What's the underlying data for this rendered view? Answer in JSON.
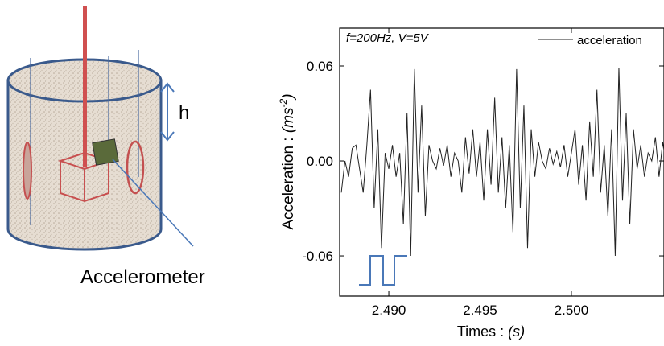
{
  "diagram": {
    "height_label": "h",
    "sensor_label": "Accelerometer"
  },
  "chart_data": {
    "type": "line",
    "annotation": "f=200Hz, V=5V",
    "xlabel_parts": [
      "Times : ",
      "(s)"
    ],
    "ylabel_parts": [
      "Acceleration : ",
      "(ms",
      "-2",
      ")"
    ],
    "x": [
      2.4874,
      2.4876,
      2.4878,
      2.488,
      2.4882,
      2.4884,
      2.4886,
      2.4888,
      2.489,
      2.4892,
      2.4894,
      2.4896,
      2.4898,
      2.49,
      2.4902,
      2.4904,
      2.4906,
      2.4908,
      2.491,
      2.4912,
      2.4914,
      2.4916,
      2.4918,
      2.492,
      2.4922,
      2.4924,
      2.4926,
      2.4928,
      2.493,
      2.4932,
      2.4934,
      2.4936,
      2.4938,
      2.494,
      2.4942,
      2.4944,
      2.4946,
      2.4948,
      2.495,
      2.4952,
      2.4954,
      2.4956,
      2.4958,
      2.496,
      2.4962,
      2.4964,
      2.4966,
      2.4968,
      2.497,
      2.4972,
      2.4974,
      2.4976,
      2.4978,
      2.498,
      2.4982,
      2.4984,
      2.4986,
      2.4988,
      2.499,
      2.4992,
      2.4994,
      2.4996,
      2.4998,
      2.5,
      2.5002,
      2.5004,
      2.5006,
      2.5008,
      2.501,
      2.5012,
      2.5014,
      2.5016,
      2.5018,
      2.502,
      2.5022,
      2.5024,
      2.5026,
      2.5028,
      2.503,
      2.5032,
      2.5034,
      2.5036,
      2.5038,
      2.504,
      2.5042,
      2.5044,
      2.5046,
      2.5048,
      2.505,
      2.5052
    ],
    "series": [
      {
        "name": "acceleration",
        "color": "#222222",
        "values": [
          -0.02,
          0.0,
          -0.01,
          0.008,
          0.01,
          -0.005,
          -0.02,
          0.01,
          0.045,
          -0.03,
          0.02,
          -0.055,
          0.005,
          -0.005,
          0.01,
          -0.01,
          0.005,
          -0.04,
          0.03,
          -0.06,
          0.058,
          -0.02,
          0.035,
          -0.035,
          0.01,
          0.0,
          -0.005,
          0.008,
          -0.003,
          0.01,
          -0.01,
          0.005,
          0.0,
          -0.02,
          0.015,
          -0.008,
          0.02,
          -0.01,
          0.012,
          -0.025,
          0.02,
          -0.015,
          0.04,
          -0.02,
          0.015,
          -0.03,
          0.01,
          -0.045,
          0.058,
          -0.03,
          0.035,
          -0.055,
          0.02,
          -0.01,
          0.012,
          0.0,
          -0.005,
          0.008,
          -0.002,
          0.006,
          -0.004,
          0.01,
          -0.01,
          0.005,
          0.02,
          -0.015,
          0.01,
          -0.025,
          0.025,
          -0.01,
          0.045,
          -0.02,
          0.01,
          -0.035,
          0.02,
          -0.06,
          0.059,
          -0.025,
          0.03,
          -0.04,
          0.02,
          -0.005,
          0.01,
          -0.01,
          0.005,
          0.0,
          0.015,
          -0.01,
          0.012,
          -0.003
        ]
      }
    ],
    "xlim": [
      2.48731,
      2.50507
    ],
    "ylim": [
      -0.0854,
      0.0839
    ],
    "xticks": [
      {
        "value": 2.49,
        "label": "2.490"
      },
      {
        "value": 2.495,
        "label": "2.495"
      },
      {
        "value": 2.5,
        "label": "2.500"
      }
    ],
    "yticks": [
      {
        "value": -0.06,
        "label": "-0.06"
      },
      {
        "value": 0,
        "label": "0.00"
      },
      {
        "value": 0.06,
        "label": "0.06"
      }
    ],
    "grid": false
  }
}
